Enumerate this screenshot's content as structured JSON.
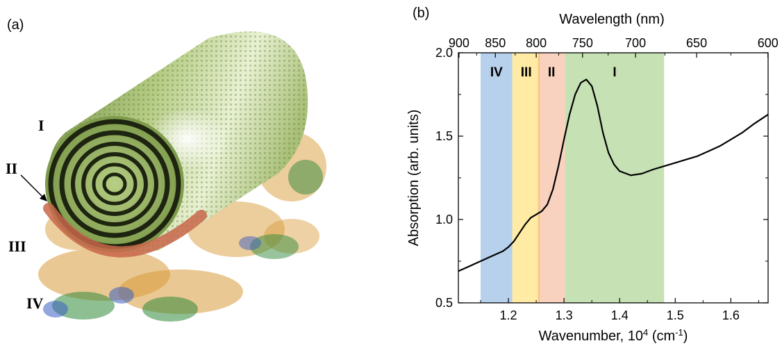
{
  "figure": {
    "panel_a": {
      "label": "(a)",
      "structure_labels": [
        "I",
        "II",
        "III",
        "IV"
      ],
      "colors": {
        "cylinder": "#b9cf86",
        "rings": "#1d2410",
        "base_band": "#c8664a",
        "protein": "#d99b3a"
      }
    },
    "panel_b": {
      "label": "(b)",
      "band_labels": [
        "IV",
        "III",
        "II",
        "I"
      ]
    }
  },
  "chart_data": {
    "type": "line",
    "xlabel": "Wavenumber, 10⁴ (cm⁻¹)",
    "ylabel": "Absorption (arb. units)",
    "top_xlabel": "Wavelength (nm)",
    "xlim": [
      1.11,
      1.667
    ],
    "ylim": [
      0.5,
      2.0
    ],
    "x_ticks": [
      "1.2",
      "1.3",
      "1.4",
      "1.5",
      "1.6"
    ],
    "y_ticks": [
      "0.5",
      "1.0",
      "1.5",
      "2.0"
    ],
    "top_ticks": [
      "900",
      "850",
      "800",
      "750",
      "700",
      "650",
      "600"
    ],
    "top_tick_nm": [
      900,
      850,
      800,
      750,
      700,
      650,
      600
    ],
    "grid": false,
    "bands": [
      {
        "label": "IV",
        "x0": 1.15,
        "x1": 1.207,
        "color": "#6fa3d9"
      },
      {
        "label": "III",
        "x0": 1.207,
        "x1": 1.257,
        "color": "#ffd84a"
      },
      {
        "label": "II",
        "x0": 1.253,
        "x1": 1.302,
        "color": "#f2a67d"
      },
      {
        "label": "I",
        "x0": 1.302,
        "x1": 1.48,
        "color": "#8ec46a"
      }
    ],
    "series": [
      {
        "color": "#000000",
        "x": [
          1.11,
          1.13,
          1.15,
          1.17,
          1.19,
          1.2,
          1.21,
          1.22,
          1.23,
          1.24,
          1.25,
          1.26,
          1.27,
          1.28,
          1.29,
          1.3,
          1.31,
          1.32,
          1.33,
          1.34,
          1.35,
          1.36,
          1.37,
          1.38,
          1.39,
          1.4,
          1.42,
          1.44,
          1.46,
          1.48,
          1.5,
          1.52,
          1.54,
          1.56,
          1.58,
          1.6,
          1.62,
          1.64,
          1.667
        ],
        "y": [
          0.69,
          0.72,
          0.75,
          0.78,
          0.81,
          0.835,
          0.87,
          0.92,
          0.97,
          1.01,
          1.03,
          1.05,
          1.09,
          1.18,
          1.32,
          1.48,
          1.63,
          1.75,
          1.82,
          1.84,
          1.8,
          1.68,
          1.52,
          1.4,
          1.33,
          1.29,
          1.265,
          1.275,
          1.3,
          1.32,
          1.34,
          1.36,
          1.38,
          1.41,
          1.44,
          1.48,
          1.52,
          1.57,
          1.63
        ]
      }
    ]
  }
}
